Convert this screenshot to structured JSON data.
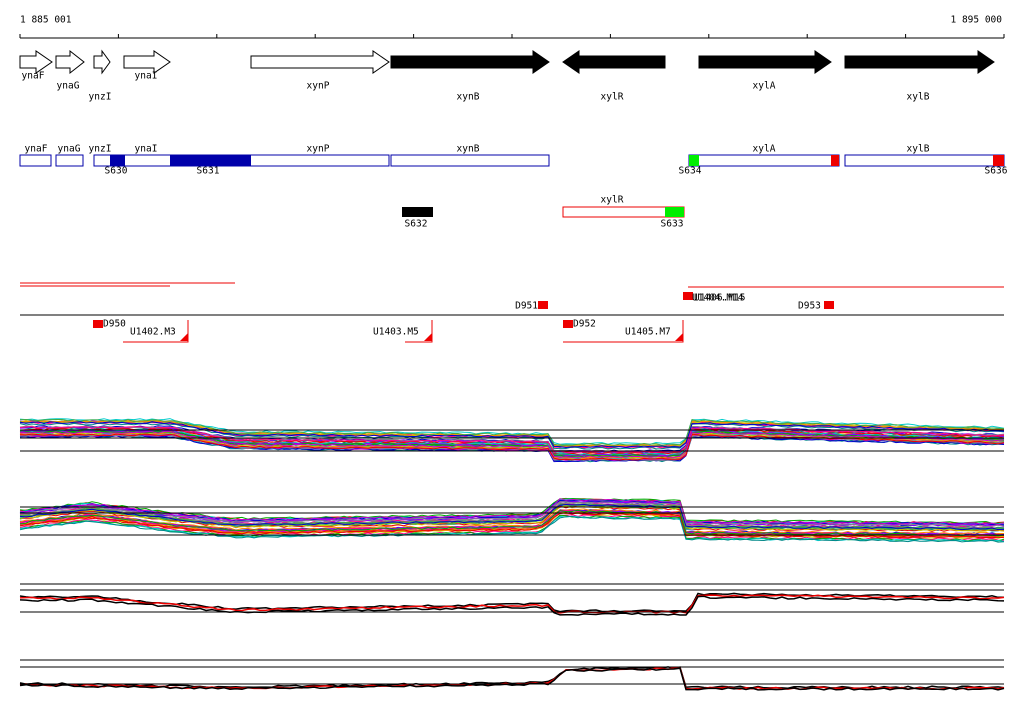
{
  "ruler": {
    "start": "1 885 001",
    "end": "1 895 000"
  },
  "genes": [
    "ynaF",
    "ynaG",
    "ynzI",
    "ynaI",
    "xynP",
    "xynB",
    "xylR",
    "xylA",
    "xylB"
  ],
  "transcripts": [
    "ynaF",
    "ynaG",
    "ynzI",
    "ynaI",
    "xynP",
    "xynB",
    "xylA",
    "xylB",
    "xylR"
  ],
  "segments": [
    "S630",
    "S631",
    "S634",
    "S636",
    "S632",
    "S633"
  ],
  "terminators": [
    "D950",
    "U1402.M3",
    "U1403.M5",
    "D951",
    "D952",
    "U1405.M7",
    "U1404.M14",
    "U1406.M15",
    "D953"
  ]
}
